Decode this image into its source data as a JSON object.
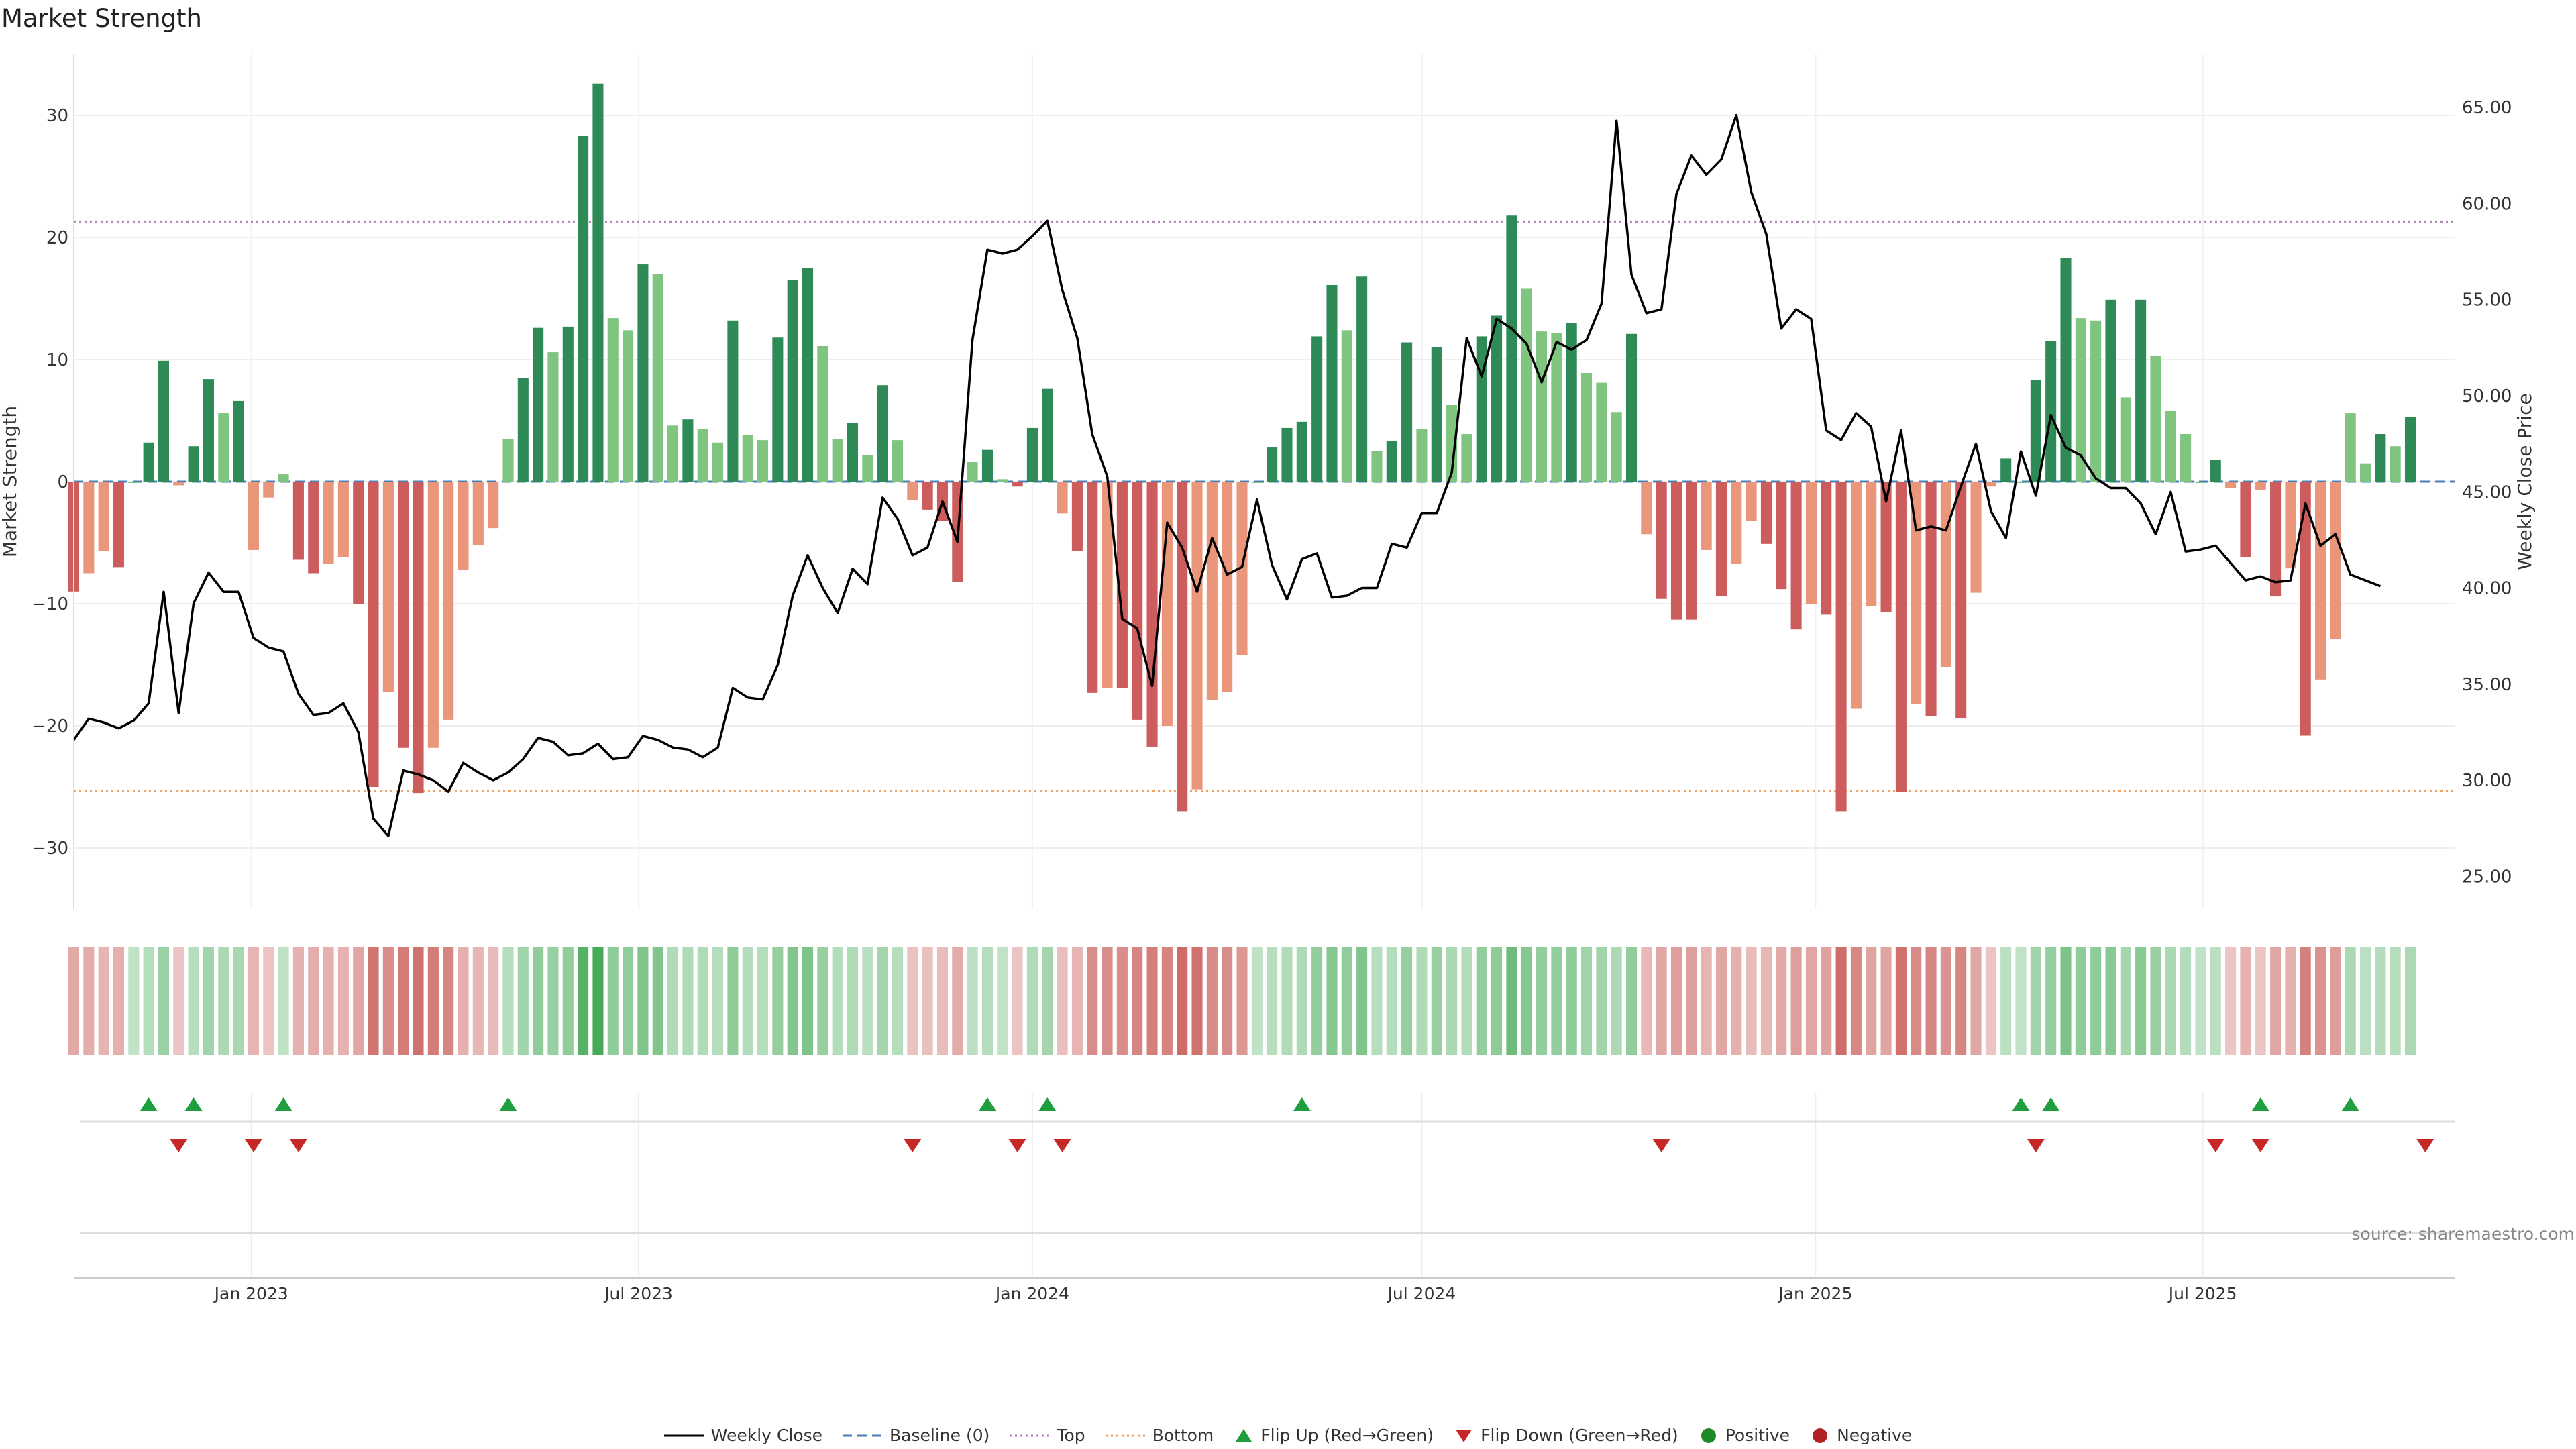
{
  "chart_data": {
    "type": "bar",
    "title": "Market Strength",
    "ylabel_left": "Market Strength",
    "ylabel_right": "Weekly Close Price",
    "source": "source: sharemaestro.com",
    "left_ylim": [
      -35,
      35
    ],
    "left_ticks": [
      -30,
      -20,
      -10,
      0,
      10,
      20,
      30
    ],
    "right_ylim": [
      23.3,
      67.8
    ],
    "right_ticks": [
      "25.00",
      "30.00",
      "35.00",
      "40.00",
      "45.00",
      "50.00",
      "55.00",
      "60.00",
      "65.00"
    ],
    "x_range": [
      "2022-10-10",
      "2025-10-27"
    ],
    "x_ticks": [
      {
        "date": "2023-01-01",
        "label": "Jan 2023"
      },
      {
        "date": "2023-07-01",
        "label": "Jul 2023"
      },
      {
        "date": "2024-01-01",
        "label": "Jan 2024"
      },
      {
        "date": "2024-07-01",
        "label": "Jul 2024"
      },
      {
        "date": "2025-01-01",
        "label": "Jan 2025"
      },
      {
        "date": "2025-07-01",
        "label": "Jul 2025"
      }
    ],
    "first_week": "2022-10-10",
    "top_level": 21.3,
    "bottom_level": -25.3,
    "strength": [
      -9,
      -7.5,
      -5.7,
      -7,
      0,
      3.2,
      9.9,
      -0.3,
      2.9,
      8.4,
      5.6,
      6.6,
      -5.6,
      -1.3,
      0.6,
      -6.4,
      -7.5,
      -6.7,
      -6.2,
      -10,
      -25,
      -17.2,
      -21.8,
      -25.5,
      -21.8,
      -19.5,
      -7.2,
      -5.2,
      -3.8,
      3.5,
      8.5,
      12.6,
      10.6,
      12.7,
      28.3,
      32.6,
      13.4,
      12.4,
      17.8,
      17,
      4.6,
      5.1,
      4.3,
      3.2,
      13.2,
      3.8,
      3.4,
      11.8,
      16.5,
      17.5,
      11.1,
      3.5,
      4.8,
      2.2,
      7.9,
      3.4,
      -1.5,
      -2.3,
      -3.2,
      -8.2,
      1.6,
      2.6,
      0.2,
      -0.4,
      4.4,
      7.6,
      -2.6,
      -5.7,
      -17.3,
      -16.9,
      -16.9,
      -19.5,
      -21.7,
      -20,
      -27,
      -25.2,
      -17.9,
      -17.2,
      -14.2,
      0,
      2.8,
      4.4,
      4.9,
      11.9,
      16.1,
      12.4,
      16.8,
      2.5,
      3.3,
      11.4,
      4.3,
      11,
      6.3,
      3.9,
      11.9,
      13.6,
      21.8,
      15.8,
      12.3,
      12.2,
      13,
      8.9,
      8.1,
      5.7,
      12.1,
      -4.3,
      -9.6,
      -11.3,
      -11.3,
      -5.6,
      -9.4,
      -6.7,
      -3.2,
      -5.1,
      -8.8,
      -12.1,
      -10,
      -10.9,
      -27,
      -18.6,
      -10.2,
      -10.7,
      -25.4,
      -18.2,
      -19.2,
      -15.2,
      -19.4,
      -9.1,
      -0.4,
      1.9,
      0,
      8.3,
      11.5,
      18.3,
      13.4,
      13.2,
      14.9,
      6.9,
      14.9,
      10.3,
      5.8,
      3.9,
      0,
      1.8,
      -0.5,
      -6.2,
      -0.7,
      -9.4,
      -7.1,
      -20.8,
      -16.2,
      -12.9,
      5.6,
      1.5,
      3.9,
      2.9,
      5.3
    ],
    "close": [
      32.1,
      33.2,
      33.0,
      32.7,
      33.1,
      34.0,
      39.8,
      33.5,
      39.2,
      40.8,
      39.8,
      39.8,
      37.4,
      36.9,
      36.7,
      34.5,
      33.4,
      33.5,
      34.0,
      32.5,
      28.0,
      27.1,
      30.5,
      30.3,
      30.0,
      29.4,
      30.9,
      30.4,
      30.0,
      30.4,
      31.1,
      32.2,
      32.0,
      31.3,
      31.4,
      31.9,
      31.1,
      31.2,
      32.3,
      32.1,
      31.7,
      31.6,
      31.2,
      31.7,
      34.8,
      34.3,
      34.2,
      36.0,
      39.6,
      41.7,
      40.0,
      38.7,
      41.0,
      40.2,
      44.7,
      43.6,
      41.7,
      42.1,
      44.5,
      42.4,
      52.9,
      57.6,
      57.4,
      57.6,
      58.3,
      59.1,
      55.5,
      53.0,
      48.0,
      45.8,
      38.4,
      37.9,
      34.9,
      43.4,
      42.1,
      39.8,
      42.6,
      40.7,
      41.1,
      44.6,
      41.2,
      39.4,
      41.5,
      41.8,
      39.5,
      39.6,
      40.0,
      40.0,
      42.3,
      42.1,
      43.9,
      43.9,
      46.0,
      53.0,
      51.0,
      54.0,
      53.5,
      52.7,
      50.7,
      52.8,
      52.4,
      52.9,
      54.8,
      64.3,
      56.3,
      54.3,
      54.5,
      60.5,
      62.5,
      61.5,
      62.3,
      64.6,
      60.6,
      58.4,
      53.5,
      54.5,
      54.0,
      48.2,
      47.7,
      49.1,
      48.4,
      44.5,
      48.2,
      43.0,
      43.2,
      43.0,
      45.3,
      47.5,
      44.0,
      42.6,
      47.1,
      44.8,
      49.0,
      47.3,
      46.9,
      45.7,
      45.2,
      45.2,
      44.4,
      42.8,
      45.0,
      41.9,
      42.0,
      42.2,
      41.3,
      40.4,
      40.6,
      40.3,
      40.4,
      44.4,
      42.2,
      42.8,
      40.7,
      40.4,
      40.1
    ],
    "flip_up_weeks": [
      5,
      8,
      14,
      29,
      61,
      65,
      82,
      130,
      132,
      146,
      152
    ],
    "flip_down_weeks": [
      7,
      12,
      15,
      56,
      63,
      66,
      106,
      131,
      143,
      146,
      157
    ],
    "colors": {
      "green_strong": "#2e8b57",
      "green_light": "#7fc47f",
      "red_strong": "#cd5c5c",
      "red_light": "#e9967a",
      "price_line": "#000000",
      "baseline": "#4a7fb5",
      "top_line": "#b27bbd",
      "bottom_line": "#f0a260",
      "flip_up": "#1f9e3f",
      "flip_down": "#c62828",
      "positive": "#1f8a28",
      "negative": "#b22222"
    },
    "legend": [
      {
        "label": "Weekly Close",
        "kind": "line",
        "color": "#000000"
      },
      {
        "label": "Baseline (0)",
        "kind": "dash",
        "color": "#4a7fb5"
      },
      {
        "label": "Top",
        "kind": "dot",
        "color": "#b27bbd"
      },
      {
        "label": "Bottom",
        "kind": "dot",
        "color": "#f0a260"
      },
      {
        "label": "Flip Up (Red→Green)",
        "kind": "tri-up",
        "color": "#1f9e3f"
      },
      {
        "label": "Flip Down (Green→Red)",
        "kind": "tri-down",
        "color": "#c62828"
      },
      {
        "label": "Positive",
        "kind": "circle",
        "color": "#1f8a28"
      },
      {
        "label": "Negative",
        "kind": "circle",
        "color": "#b22222"
      }
    ]
  }
}
